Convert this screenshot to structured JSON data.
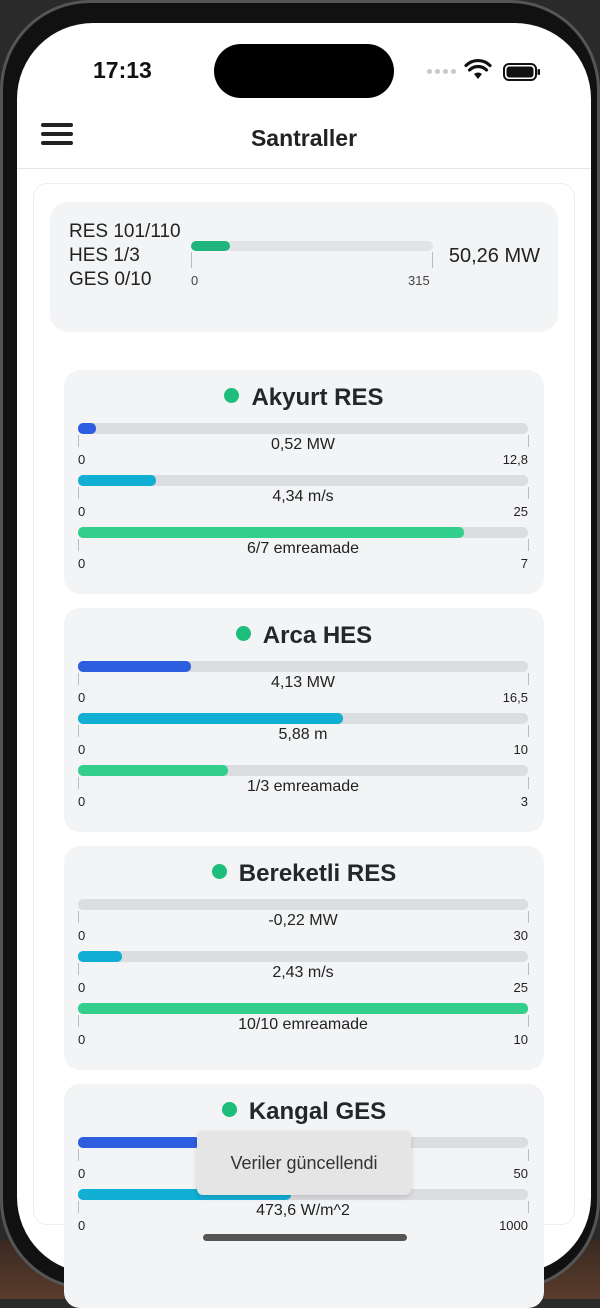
{
  "status_bar": {
    "time": "17:13"
  },
  "nav": {
    "title": "Santraller"
  },
  "summary": {
    "labels": [
      "RES 101/110",
      "HES 1/3",
      "GES 0/10"
    ],
    "total": "50,26 MW",
    "min": "0",
    "max": "315",
    "fill_fraction": 0.16
  },
  "plants": [
    {
      "name": "Akyurt RES",
      "metrics": [
        {
          "value": "0,52 MW",
          "min": "0",
          "max": "12,8",
          "fraction": 0.04,
          "color": "#2e5ee0"
        },
        {
          "value": "4,34 m/s",
          "min": "0",
          "max": "25",
          "fraction": 0.174,
          "color": "#12afd4"
        },
        {
          "value": "6/7  emreamade",
          "min": "0",
          "max": "7",
          "fraction": 0.857,
          "color": "#34cf8c"
        }
      ]
    },
    {
      "name": "Arca HES",
      "metrics": [
        {
          "value": "4,13 MW",
          "min": "0",
          "max": "16,5",
          "fraction": 0.25,
          "color": "#2e5ee0"
        },
        {
          "value": "5,88 m",
          "min": "0",
          "max": "10",
          "fraction": 0.588,
          "color": "#12afd4"
        },
        {
          "value": "1/3  emreamade",
          "min": "0",
          "max": "3",
          "fraction": 0.333,
          "color": "#34cf8c"
        }
      ]
    },
    {
      "name": "Bereketli RES",
      "metrics": [
        {
          "value": "-0,22 MW",
          "min": "0",
          "max": "30",
          "fraction": 0,
          "color": "#2e5ee0"
        },
        {
          "value": "2,43 m/s",
          "min": "0",
          "max": "25",
          "fraction": 0.097,
          "color": "#12afd4"
        },
        {
          "value": "10/10 emreamade",
          "min": "0",
          "max": "10",
          "fraction": 1.0,
          "color": "#34cf8c"
        }
      ]
    },
    {
      "name": "Kangal GES",
      "metrics": [
        {
          "value": "",
          "min": "0",
          "max": "50",
          "fraction": 0.27,
          "color": "#2e5ee0"
        },
        {
          "value": "473,6 W/m^2",
          "min": "0",
          "max": "1000",
          "fraction": 0.474,
          "color": "#12afd4"
        }
      ]
    }
  ],
  "toast": {
    "message": "Veriler güncellendi"
  },
  "icons": [
    "menu-icon",
    "wifi-icon",
    "battery-icon",
    "signal-icon",
    "status-dot-icon"
  ]
}
